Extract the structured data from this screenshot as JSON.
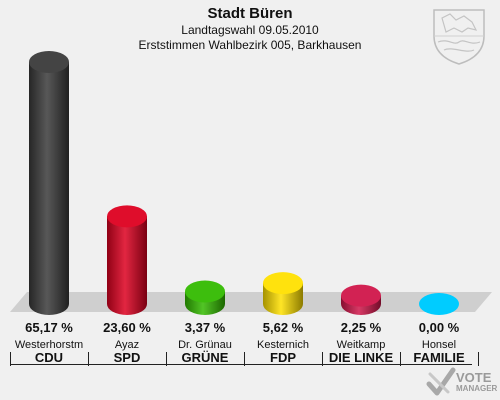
{
  "header": {
    "title": "Stadt Büren",
    "subtitle": "Landtagswahl 09.05.2010",
    "subtitle2": "Erststimmen Wahlbezirk 005, Barkhausen"
  },
  "chart_data": {
    "type": "bar",
    "title": "Stadt Büren",
    "subtitle": "Landtagswahl 09.05.2010 / Erststimmen Wahlbezirk 005, Barkhausen",
    "categories": [
      "CDU",
      "SPD",
      "GRÜNE",
      "FDP",
      "DIE LINKE",
      "FAMILIE"
    ],
    "candidates": [
      "Westerhorstm",
      "Ayaz",
      "Dr. Grünau",
      "Kesternich",
      "Weitkamp",
      "Honsel"
    ],
    "values": [
      65.17,
      23.6,
      3.37,
      5.62,
      2.25,
      0.0
    ],
    "value_labels": [
      "65,17 %",
      "23,60 %",
      "3,37 %",
      "5,62 %",
      "2,25 %",
      "0,00 %"
    ],
    "colors": [
      "#3a3a3a",
      "#dd0020",
      "#33bb00",
      "#ffe000",
      "#d0164a",
      "#00ccff"
    ],
    "ylim": [
      0,
      65.17
    ],
    "grid": false,
    "legend": "none"
  },
  "branding": {
    "line1": "VOTE",
    "line2": "MANAGER",
    "icon": "vote-manager-check-icon"
  },
  "coat_of_arms_icon": "coat-of-arms-icon"
}
